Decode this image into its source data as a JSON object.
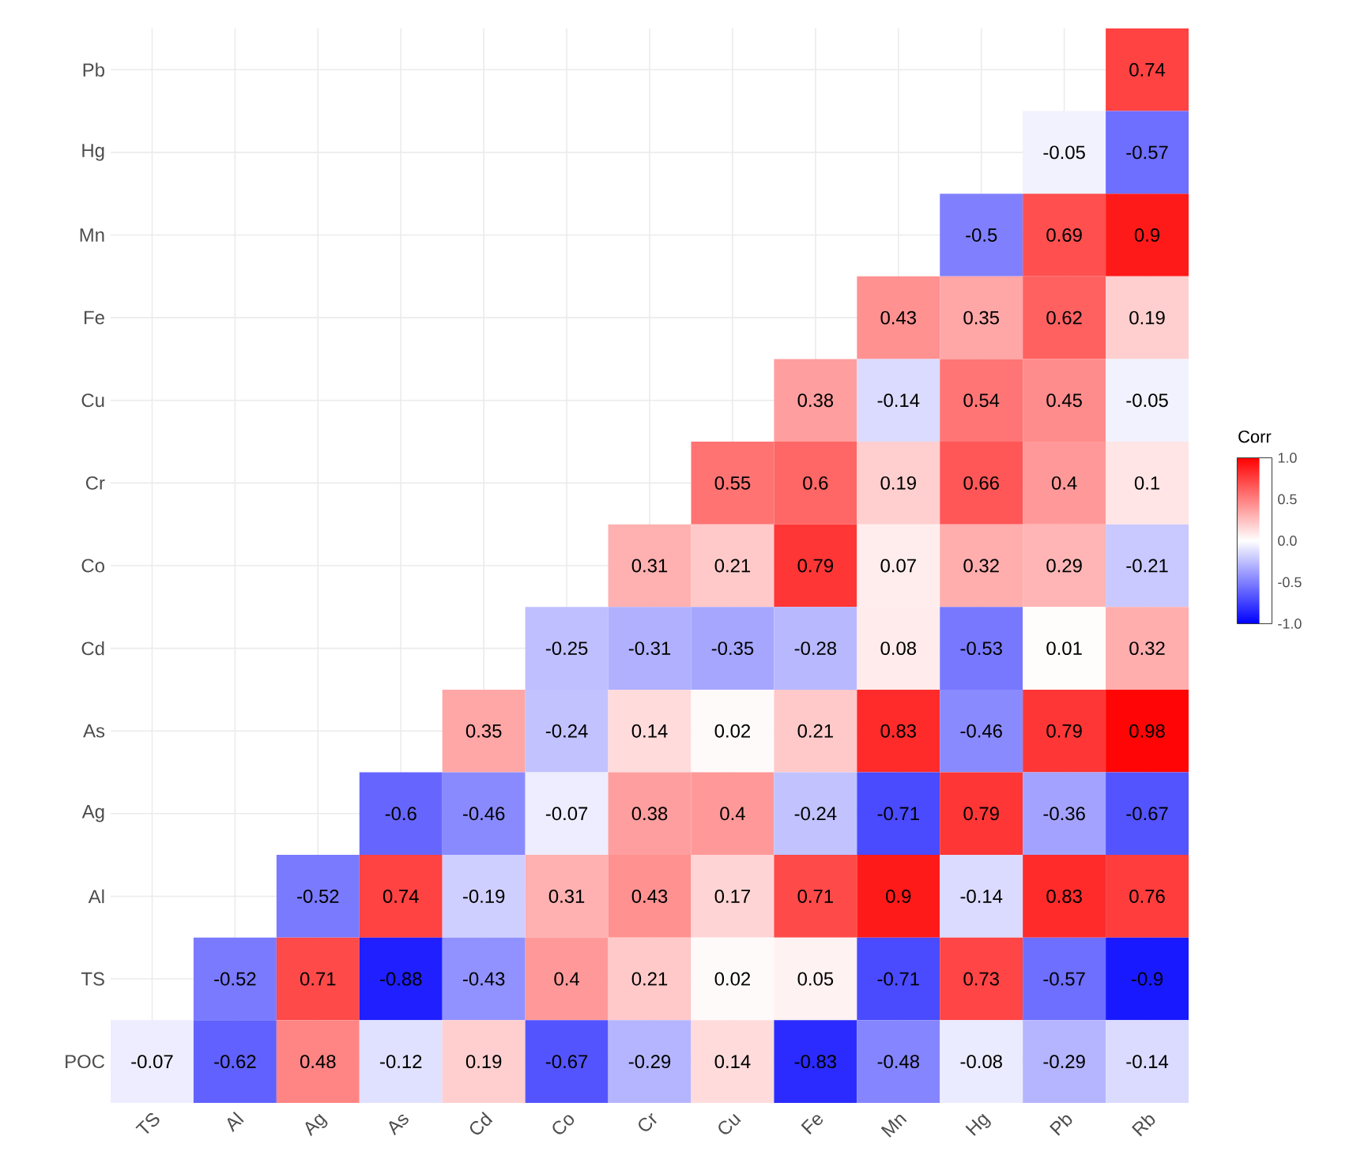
{
  "chart_data": {
    "type": "heatmap",
    "categories": [
      "TS",
      "Al",
      "Ag",
      "As",
      "Cd",
      "Co",
      "Cr",
      "Cu",
      "Fe",
      "Mn",
      "Hg",
      "Pb",
      "Rb"
    ],
    "y_categories": [
      "Pb",
      "Hg",
      "Mn",
      "Fe",
      "Cu",
      "Cr",
      "Co",
      "Cd",
      "As",
      "Ag",
      "Al",
      "TS",
      "POC"
    ],
    "cells": [
      [
        null,
        null,
        null,
        null,
        null,
        null,
        null,
        null,
        null,
        null,
        null,
        null,
        0.74
      ],
      [
        null,
        null,
        null,
        null,
        null,
        null,
        null,
        null,
        null,
        null,
        null,
        -0.05,
        -0.57
      ],
      [
        null,
        null,
        null,
        null,
        null,
        null,
        null,
        null,
        null,
        null,
        -0.5,
        0.69,
        0.9
      ],
      [
        null,
        null,
        null,
        null,
        null,
        null,
        null,
        null,
        null,
        0.43,
        0.35,
        0.62,
        0.19
      ],
      [
        null,
        null,
        null,
        null,
        null,
        null,
        null,
        null,
        0.38,
        -0.14,
        0.54,
        0.45,
        -0.05
      ],
      [
        null,
        null,
        null,
        null,
        null,
        null,
        null,
        0.55,
        0.6,
        0.19,
        0.66,
        0.4,
        0.1
      ],
      [
        null,
        null,
        null,
        null,
        null,
        null,
        0.31,
        0.21,
        0.79,
        0.07,
        0.32,
        0.29,
        -0.21
      ],
      [
        null,
        null,
        null,
        null,
        null,
        -0.25,
        -0.31,
        -0.35,
        -0.28,
        0.08,
        -0.53,
        0.01,
        0.32
      ],
      [
        null,
        null,
        null,
        null,
        0.35,
        -0.24,
        0.14,
        0.02,
        0.21,
        0.83,
        -0.46,
        0.79,
        0.98
      ],
      [
        null,
        null,
        null,
        -0.6,
        -0.46,
        -0.07,
        0.38,
        0.4,
        -0.24,
        -0.71,
        0.79,
        -0.36,
        -0.67
      ],
      [
        null,
        null,
        -0.52,
        0.74,
        -0.19,
        0.31,
        0.43,
        0.17,
        0.71,
        0.9,
        -0.14,
        0.83,
        0.76
      ],
      [
        null,
        -0.52,
        0.71,
        -0.88,
        -0.43,
        0.4,
        0.21,
        0.02,
        0.05,
        -0.71,
        0.73,
        -0.57,
        -0.9
      ],
      [
        -0.07,
        -0.62,
        0.48,
        -0.12,
        0.19,
        -0.67,
        -0.29,
        0.14,
        -0.83,
        -0.48,
        -0.08,
        -0.29,
        -0.14
      ]
    ],
    "data_labels": true,
    "clabel": "Corr",
    "clim": [
      -1,
      1
    ],
    "cticks": [
      {
        "value": -1,
        "label": "-1.0"
      },
      {
        "value": -0.5,
        "label": "-0.5"
      },
      {
        "value": 0,
        "label": "0.0"
      },
      {
        "value": 0.5,
        "label": "0.5"
      },
      {
        "value": 1,
        "label": "1.0"
      }
    ],
    "grid": true
  }
}
